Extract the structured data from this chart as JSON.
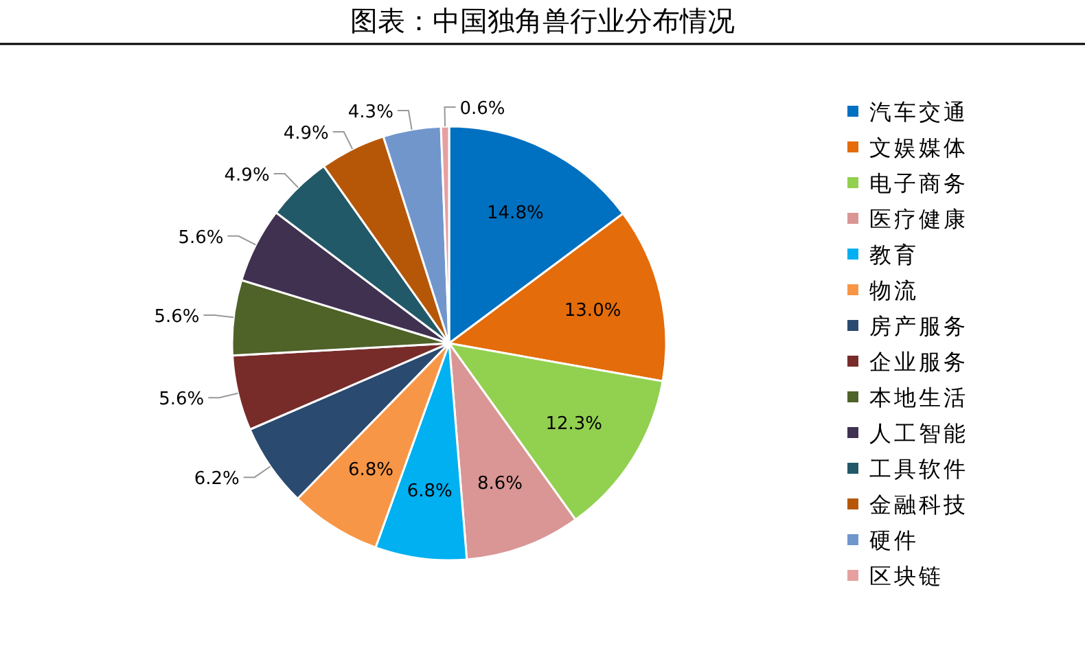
{
  "chart_data": {
    "type": "pie",
    "title": "图表：中国独角兽行业分布情况",
    "categories": [
      "汽车交通",
      "文娱媒体",
      "电子商务",
      "医疗健康",
      "教育",
      "物流",
      "房产服务",
      "企业服务",
      "本地生活",
      "人工智能",
      "工具软件",
      "金融科技",
      "硬件",
      "区块链"
    ],
    "values": [
      14.8,
      13.0,
      12.3,
      8.6,
      6.8,
      6.8,
      6.2,
      5.6,
      5.6,
      5.6,
      4.9,
      4.9,
      4.3,
      0.6
    ],
    "value_labels": [
      "14.8%",
      "13.0%",
      "12.3%",
      "8.6%",
      "6.8%",
      "6.8%",
      "6.2%",
      "5.6%",
      "5.6%",
      "5.6%",
      "4.9%",
      "4.9%",
      "4.3%",
      "0.6%"
    ],
    "colors": [
      "#0070c0",
      "#e46c0a",
      "#92d050",
      "#d99694",
      "#00b0f0",
      "#f79646",
      "#2b4a6f",
      "#772c2a",
      "#4f6228",
      "#403151",
      "#215968",
      "#b65708",
      "#7196cc",
      "#e6a0a0"
    ],
    "legend": "right"
  }
}
